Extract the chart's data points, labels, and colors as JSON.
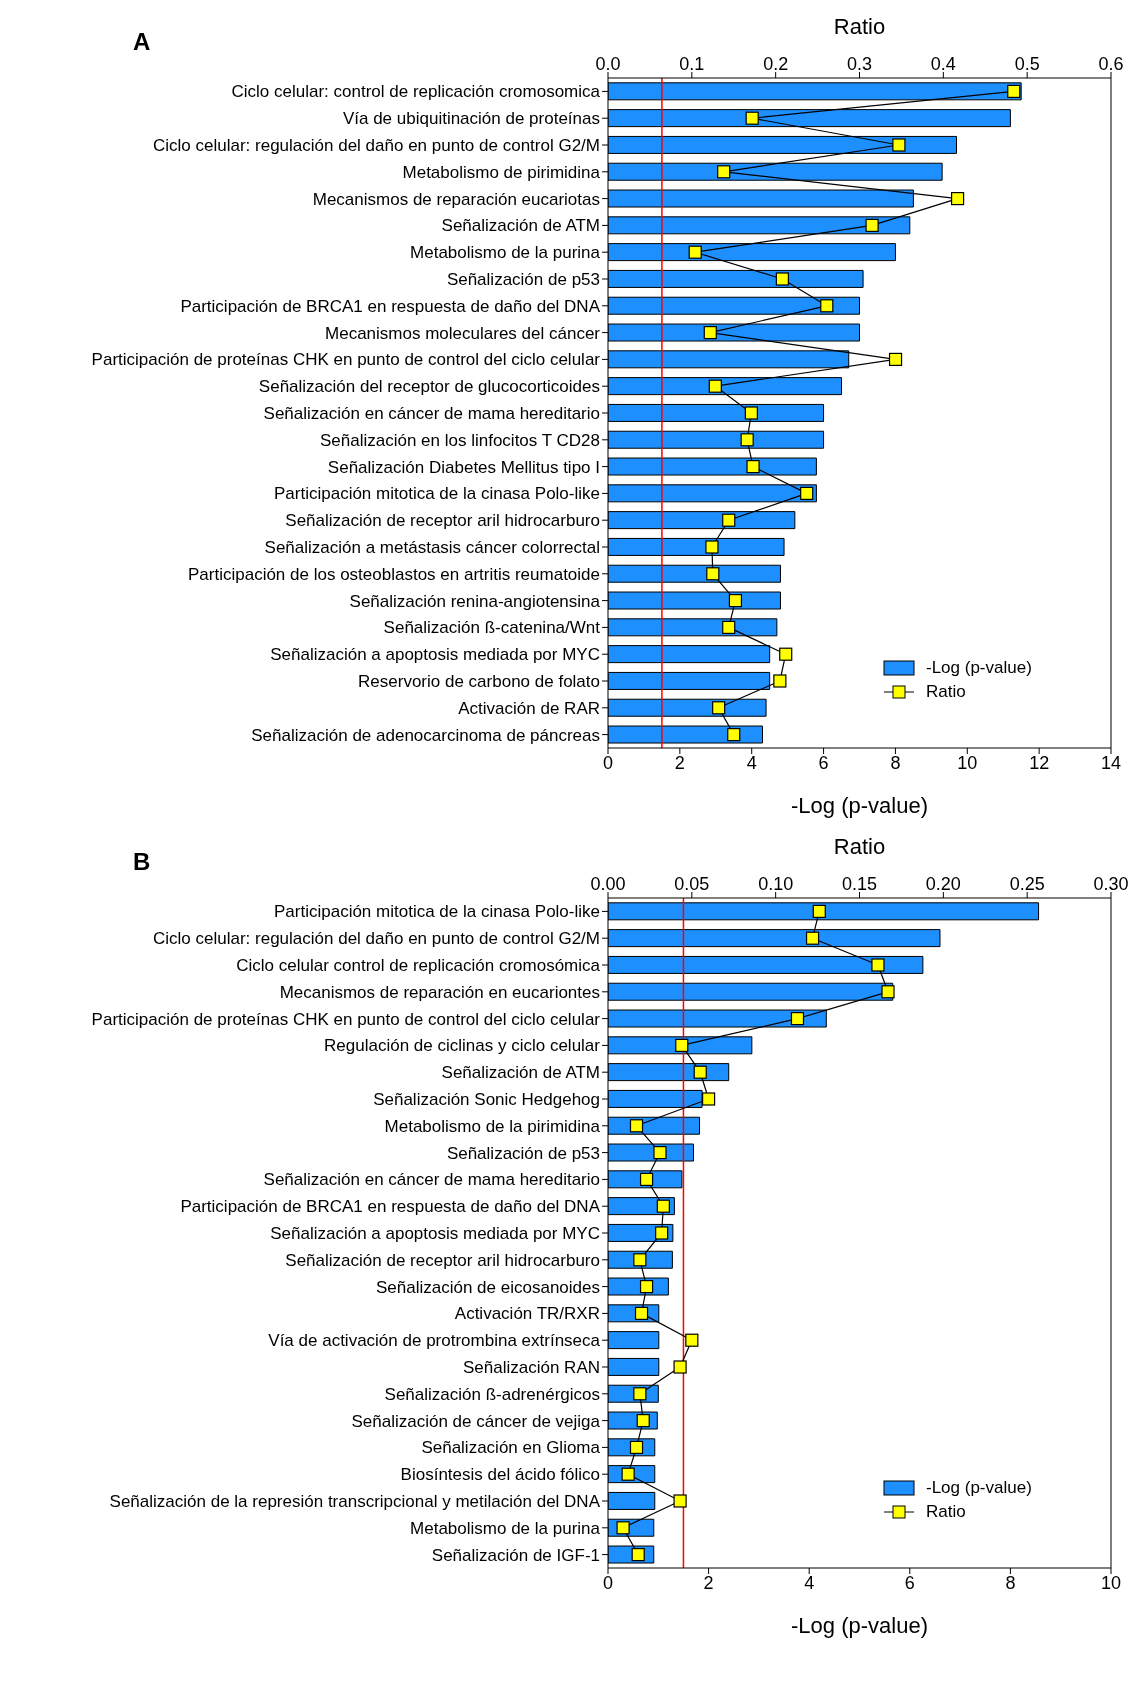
{
  "chart_data": [
    {
      "type": "bar",
      "title": "A",
      "orientation": "horizontal",
      "xlabel": "-Log (p-value)",
      "x2label": "Ratio",
      "legend": "bottom right",
      "marker": "square",
      "categories": [
        "Ciclo celular: control de replicación cromosomica",
        "Vía de ubiquitinación de proteínas",
        "Ciclo celular: regulación del daño en punto de control G2/M",
        "Metabolismo de pirimidina",
        "Mecanismos de reparación eucariotas",
        "Señalización de ATM",
        "Metabolismo de la purina",
        "Señalización de p53",
        "Participación de BRCA1 en respuesta de daño del DNA",
        "Mecanismos moleculares del cáncer",
        "Participación de proteínas CHK en punto de control del ciclo celular",
        "Señalización del receptor de glucocorticoides",
        "Señalización en cáncer de mama hereditario",
        "Señalización en los linfocitos T CD28",
        "Señalización Diabetes Mellitus tipo I",
        "Participación mitotica de la cinasa Polo-like",
        "Señalización de receptor aril hidrocarburo",
        "Señalización a metástasis cáncer colorrectal",
        "Participación de los osteoblastos en artritis reumatoide",
        "Señalización renina-angiotensina",
        "Señalización ß-catenina/Wnt",
        "Señalización a apoptosis mediada por MYC",
        "Reservorio de carbono de folato",
        "Activación de RAR",
        "Señalización de adenocarcinoma de páncreas"
      ],
      "series": [
        {
          "name": "-Log (p-value)",
          "type": "bar",
          "color": "#1e8fff",
          "values": [
            11.5,
            11.2,
            9.7,
            9.3,
            8.5,
            8.4,
            8.0,
            7.1,
            7.0,
            7.0,
            6.7,
            6.5,
            6.0,
            6.0,
            5.8,
            5.8,
            5.2,
            4.9,
            4.8,
            4.8,
            4.7,
            4.5,
            4.5,
            4.4,
            4.3
          ]
        },
        {
          "name": "Ratio",
          "type": "line",
          "axis": "x2",
          "color": "#ffff00",
          "values": [
            0.484,
            0.172,
            0.347,
            0.138,
            0.417,
            0.315,
            0.104,
            0.208,
            0.261,
            0.122,
            0.343,
            0.128,
            0.171,
            0.166,
            0.173,
            0.237,
            0.144,
            0.124,
            0.125,
            0.152,
            0.144,
            0.212,
            0.205,
            0.132,
            0.15
          ]
        }
      ],
      "xlim": [
        0,
        14
      ],
      "xticks": [
        0,
        2,
        4,
        6,
        8,
        10,
        12,
        14
      ],
      "x2lim": [
        0,
        0.6
      ],
      "x2ticks": [
        {
          "value": 0,
          "label": "0.0"
        },
        0.1,
        0.2,
        0.3,
        0.4,
        0.5,
        0.6
      ],
      "ref_lines": [
        {
          "axis": "x",
          "value": 1.5,
          "color": "#ff0000"
        }
      ]
    },
    {
      "type": "bar",
      "title": "B",
      "orientation": "horizontal",
      "xlabel": "-Log (p-value)",
      "x2label": "Ratio",
      "legend": "bottom right",
      "marker": "square",
      "categories": [
        "Participación mitotica de la cinasa Polo-like",
        "Ciclo celular: regulación del daño en punto de control G2/M",
        "Ciclo celular control de replicación cromosómica",
        "Mecanismos de reparación en eucariontes",
        "Participación de proteínas CHK en punto de control del ciclo celular",
        "Regulación de ciclinas y ciclo celular",
        "Señalización de ATM",
        "Señalización Sonic Hedgehog",
        "Metabolismo de la pirimidina",
        "Señalización de p53",
        "Señalización en cáncer de mama hereditario",
        "Participación de BRCA1 en respuesta de daño del DNA",
        "Señalización a apoptosis mediada por MYC",
        "Señalización de receptor aril hidrocarburo",
        "Señalización de eicosanoides",
        "Activación TR/RXR",
        "Vía de activación de protrombina extrínseca",
        "Señalización RAN",
        "Señalización ß-adrenérgicos",
        "Señalización de cáncer de vejiga",
        "Señalización en Glioma",
        "Biosíntesis del ácido fólico",
        "Señalización de la represión transcripcional y metilación del DNA",
        "Metabolismo de la purina",
        "Señalización de IGF-1"
      ],
      "series": [
        {
          "name": "-Log (p-value)",
          "type": "bar",
          "color": "#1e8fff",
          "values": [
            8.56,
            6.6,
            6.26,
            5.66,
            4.34,
            2.86,
            2.4,
            1.87,
            1.82,
            1.7,
            1.47,
            1.32,
            1.29,
            1.28,
            1.2,
            1.01,
            1.01,
            1.01,
            1.0,
            0.98,
            0.93,
            0.93,
            0.93,
            0.91,
            0.91
          ]
        },
        {
          "name": "Ratio",
          "type": "line",
          "axis": "x2",
          "color": "#ffff00",
          "values": [
            0.126,
            0.122,
            0.161,
            0.167,
            0.113,
            0.044,
            0.055,
            0.06,
            0.017,
            0.031,
            0.023,
            0.033,
            0.032,
            0.019,
            0.023,
            0.02,
            0.05,
            0.043,
            0.019,
            0.021,
            0.017,
            0.012,
            0.043,
            0.009,
            0.018
          ]
        }
      ],
      "xlim": [
        0,
        10
      ],
      "xticks": [
        0,
        2,
        4,
        6,
        8,
        10
      ],
      "x2lim": [
        0,
        0.3
      ],
      "x2ticks": [
        {
          "value": 0,
          "label": "0.00"
        },
        {
          "value": 0.05,
          "label": "0.05"
        },
        {
          "value": 0.1,
          "label": "0.10"
        },
        {
          "value": 0.15,
          "label": "0.15"
        },
        {
          "value": 0.2,
          "label": "0.20"
        },
        {
          "value": 0.25,
          "label": "0.25"
        },
        {
          "value": 0.3,
          "label": "0.30"
        }
      ],
      "ref_lines": [
        {
          "axis": "x",
          "value": 1.5,
          "color": "#ff0000"
        }
      ]
    }
  ]
}
